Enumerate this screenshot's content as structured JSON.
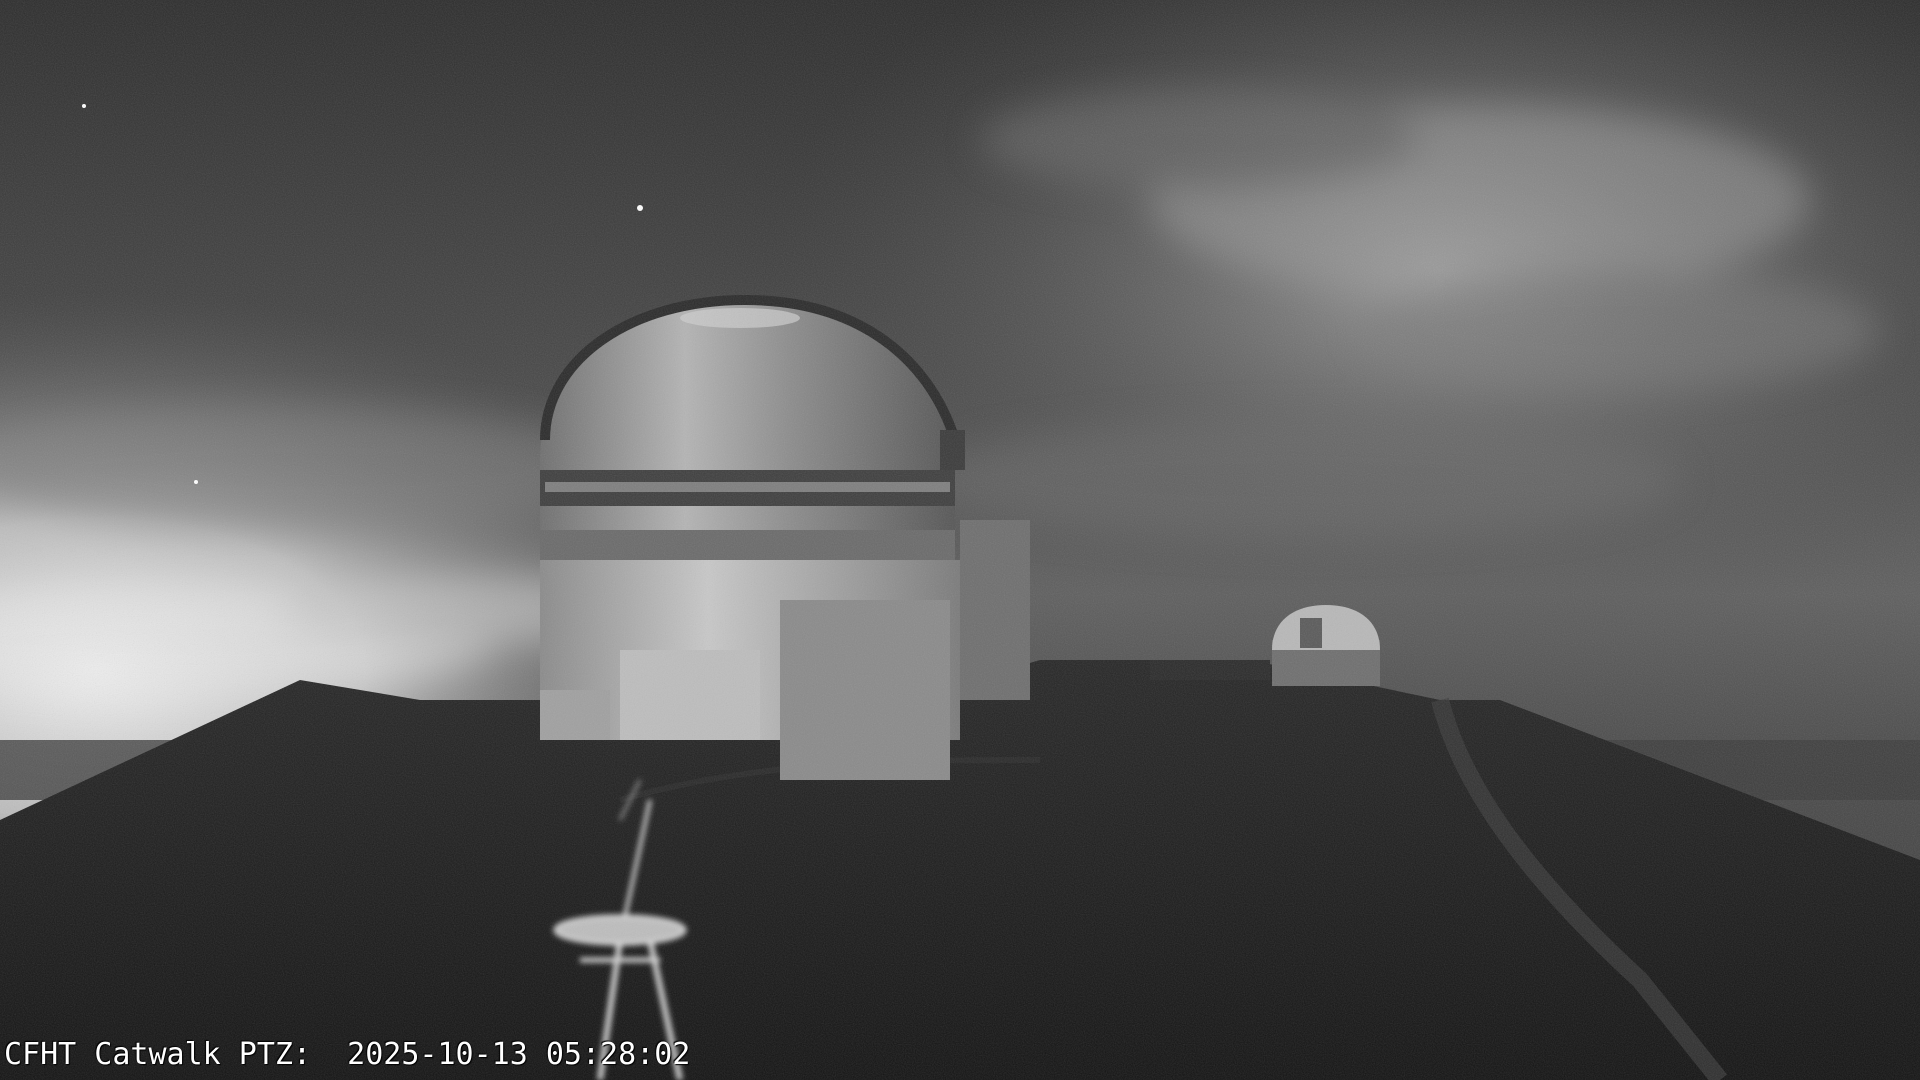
{
  "camera_overlay": {
    "camera_name": "CFHT Catwalk PTZ:",
    "timestamp": "2025-10-13 05:28:02"
  },
  "scene": {
    "mode": "night infrared grayscale",
    "colors": {
      "sky_dark": "#2e2e2e",
      "sky_mid": "#5a5a5a",
      "horizon_glow": "#e6e6e6",
      "ridge": "#1c1c1c",
      "dome": "#9a9a9a",
      "overlay_text": "#ffffff"
    }
  }
}
